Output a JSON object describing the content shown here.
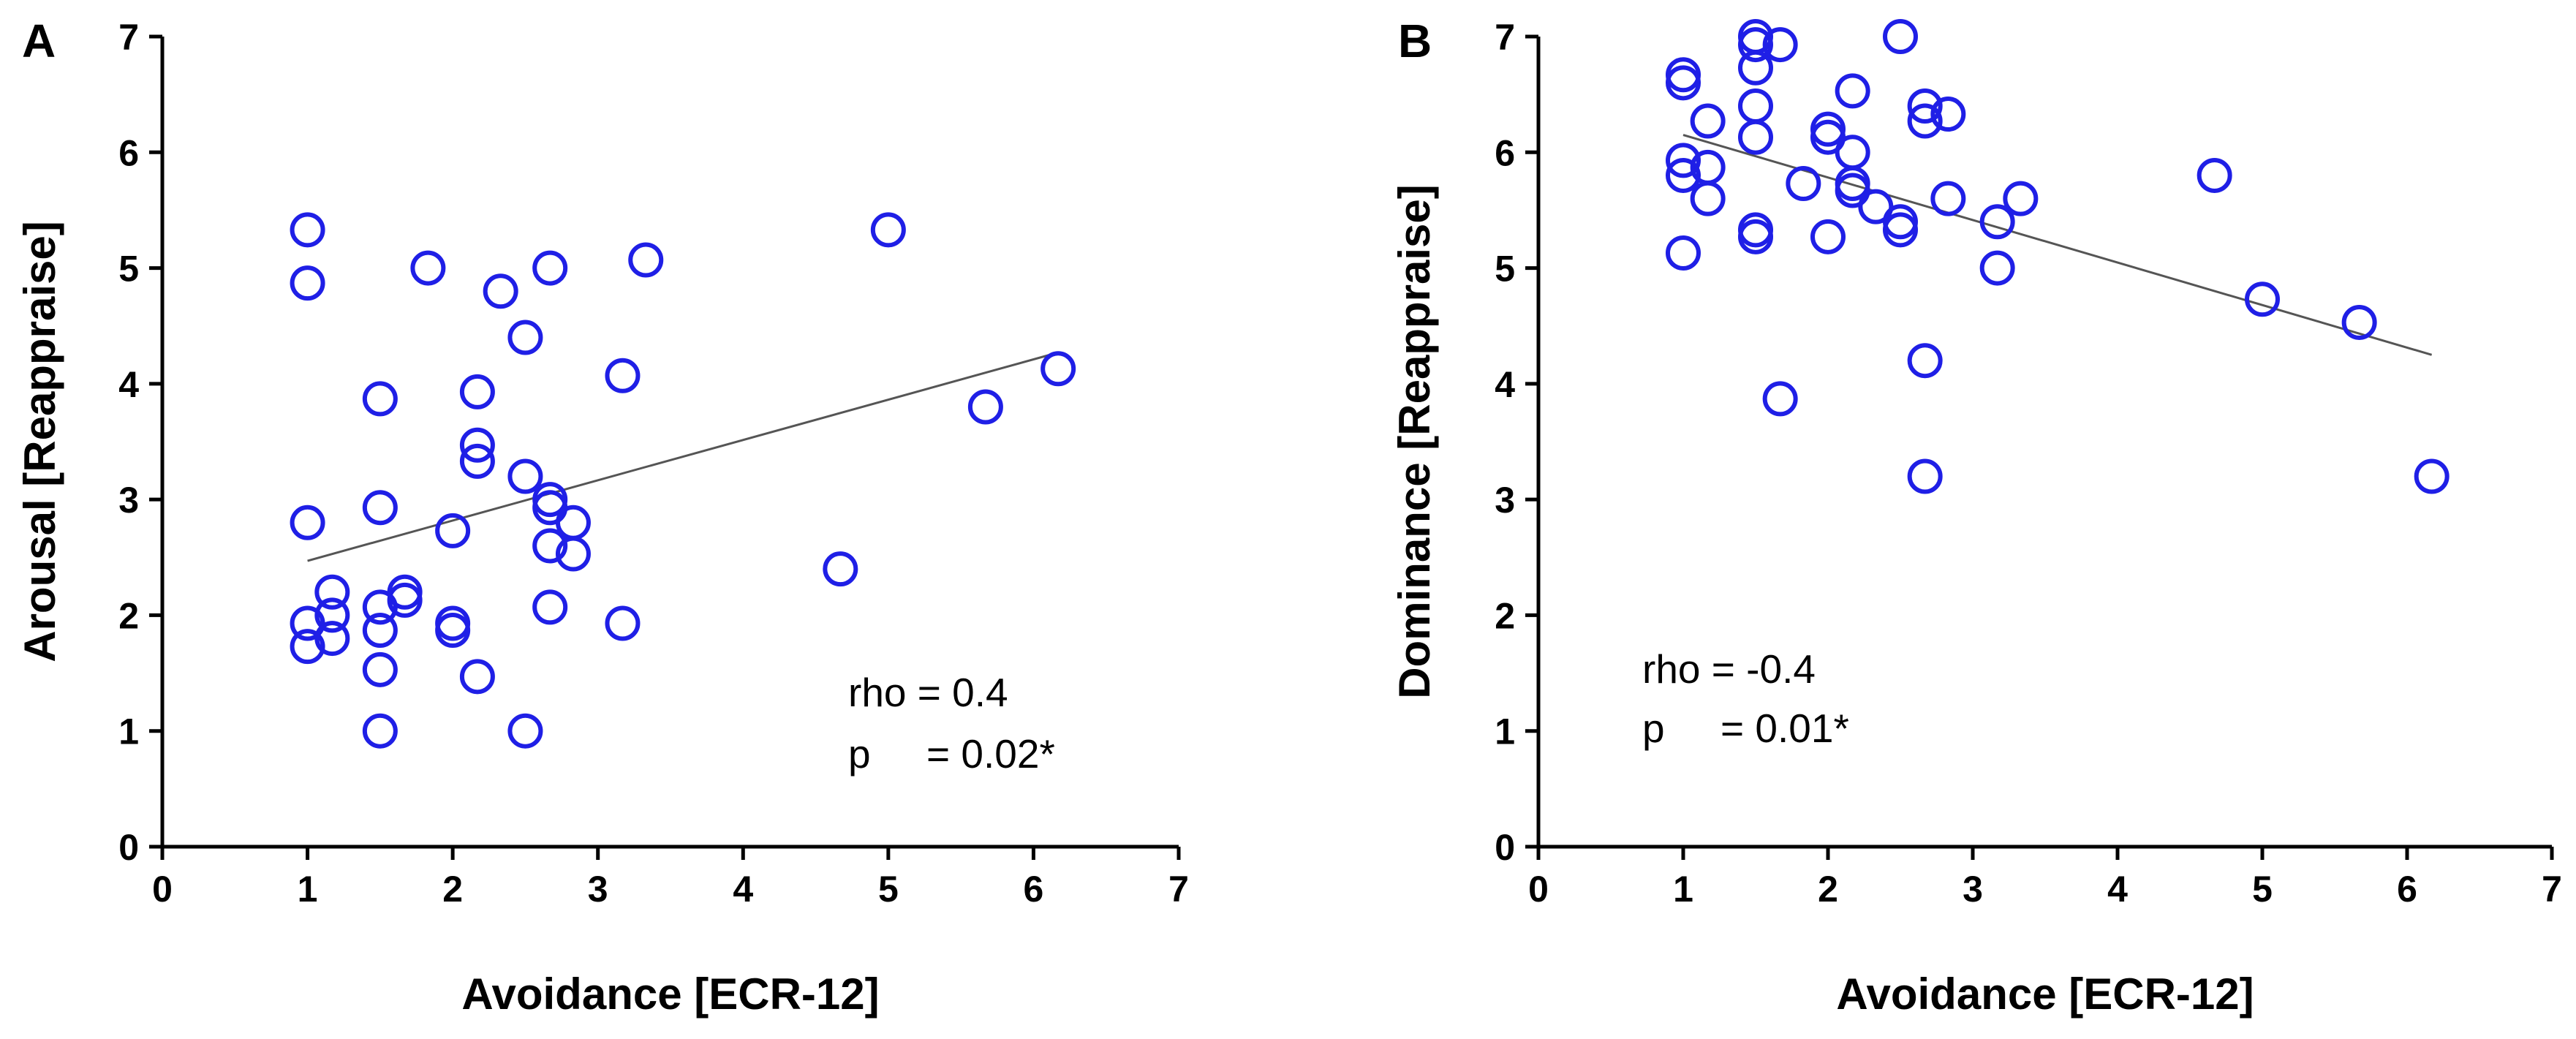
{
  "figure": {
    "panels": [
      {
        "letter": "A"
      },
      {
        "letter": "B"
      }
    ]
  },
  "colors": {
    "marker": "#1f1fe6",
    "fit_line": "#555555",
    "axis": "#000000"
  },
  "chart_data": [
    {
      "type": "scatter",
      "panel": "A",
      "title": "",
      "xlabel": "Avoidance [ECR-12]",
      "ylabel": "Arousal [Reappraise]",
      "xlim": [
        0,
        7
      ],
      "ylim": [
        0,
        7
      ],
      "xticks": [
        "0",
        "1",
        "2",
        "3",
        "4",
        "5",
        "6",
        "7"
      ],
      "yticks": [
        "0",
        "1",
        "2",
        "3",
        "4",
        "5",
        "6",
        "7"
      ],
      "grid": false,
      "annotation": {
        "line1": "rho = 0.4",
        "line2": "p     = 0.02*"
      },
      "fit_line": {
        "x": [
          1,
          6.17
        ],
        "y": [
          2.47,
          4.27
        ]
      },
      "points": [
        [
          1.0,
          5.33
        ],
        [
          1.0,
          4.87
        ],
        [
          1.0,
          2.8
        ],
        [
          1.0,
          1.93
        ],
        [
          1.0,
          1.73
        ],
        [
          1.17,
          2.2
        ],
        [
          1.17,
          2.0
        ],
        [
          1.17,
          1.8
        ],
        [
          1.5,
          3.87
        ],
        [
          1.5,
          2.93
        ],
        [
          1.5,
          2.07
        ],
        [
          1.5,
          1.87
        ],
        [
          1.5,
          1.53
        ],
        [
          1.5,
          1.0
        ],
        [
          1.67,
          2.2
        ],
        [
          1.67,
          2.13
        ],
        [
          1.83,
          5.0
        ],
        [
          2.0,
          2.73
        ],
        [
          2.0,
          1.93
        ],
        [
          2.0,
          1.87
        ],
        [
          2.17,
          3.93
        ],
        [
          2.17,
          3.47
        ],
        [
          2.17,
          3.33
        ],
        [
          2.17,
          1.47
        ],
        [
          2.33,
          4.8
        ],
        [
          2.5,
          4.4
        ],
        [
          2.5,
          3.2
        ],
        [
          2.5,
          1.0
        ],
        [
          2.67,
          5.0
        ],
        [
          2.67,
          3.0
        ],
        [
          2.67,
          2.93
        ],
        [
          2.67,
          2.6
        ],
        [
          2.67,
          2.07
        ],
        [
          2.83,
          2.8
        ],
        [
          2.83,
          2.53
        ],
        [
          3.17,
          4.07
        ],
        [
          3.17,
          1.93
        ],
        [
          3.33,
          5.07
        ],
        [
          4.67,
          2.4
        ],
        [
          5.0,
          5.33
        ],
        [
          5.67,
          3.8
        ],
        [
          6.17,
          4.13
        ]
      ]
    },
    {
      "type": "scatter",
      "panel": "B",
      "title": "",
      "xlabel": "Avoidance [ECR-12]",
      "ylabel": "Dominance [Reappraise]",
      "xlim": [
        0,
        7
      ],
      "ylim": [
        0,
        7
      ],
      "xticks": [
        "0",
        "1",
        "2",
        "3",
        "4",
        "5",
        "6",
        "7"
      ],
      "yticks": [
        "0",
        "1",
        "2",
        "3",
        "4",
        "5",
        "6",
        "7"
      ],
      "grid": false,
      "annotation": {
        "line1": "rho = -0.4",
        "line2": "p     = 0.01*"
      },
      "fit_line": {
        "x": [
          1,
          6.17
        ],
        "y": [
          6.15,
          4.25
        ]
      },
      "points": [
        [
          1.0,
          6.67
        ],
        [
          1.0,
          6.6
        ],
        [
          1.0,
          5.93
        ],
        [
          1.0,
          5.8
        ],
        [
          1.0,
          5.13
        ],
        [
          1.17,
          6.27
        ],
        [
          1.17,
          5.87
        ],
        [
          1.17,
          5.6
        ],
        [
          1.5,
          7.0
        ],
        [
          1.5,
          6.93
        ],
        [
          1.5,
          6.73
        ],
        [
          1.5,
          6.4
        ],
        [
          1.5,
          6.13
        ],
        [
          1.5,
          5.33
        ],
        [
          1.5,
          5.27
        ],
        [
          1.67,
          6.93
        ],
        [
          1.67,
          3.87
        ],
        [
          1.83,
          5.73
        ],
        [
          2.0,
          6.2
        ],
        [
          2.0,
          6.13
        ],
        [
          2.0,
          5.27
        ],
        [
          2.17,
          6.53
        ],
        [
          2.17,
          6.0
        ],
        [
          2.17,
          5.73
        ],
        [
          2.17,
          5.67
        ],
        [
          2.33,
          5.53
        ],
        [
          2.5,
          7.0
        ],
        [
          2.5,
          5.4
        ],
        [
          2.5,
          5.33
        ],
        [
          2.67,
          6.4
        ],
        [
          2.67,
          6.27
        ],
        [
          2.67,
          4.2
        ],
        [
          2.67,
          3.2
        ],
        [
          2.83,
          6.33
        ],
        [
          2.83,
          5.6
        ],
        [
          3.17,
          5.4
        ],
        [
          3.17,
          5.0
        ],
        [
          3.33,
          5.6
        ],
        [
          4.67,
          5.8
        ],
        [
          5.0,
          4.73
        ],
        [
          5.67,
          4.53
        ],
        [
          6.17,
          3.2
        ]
      ]
    }
  ]
}
